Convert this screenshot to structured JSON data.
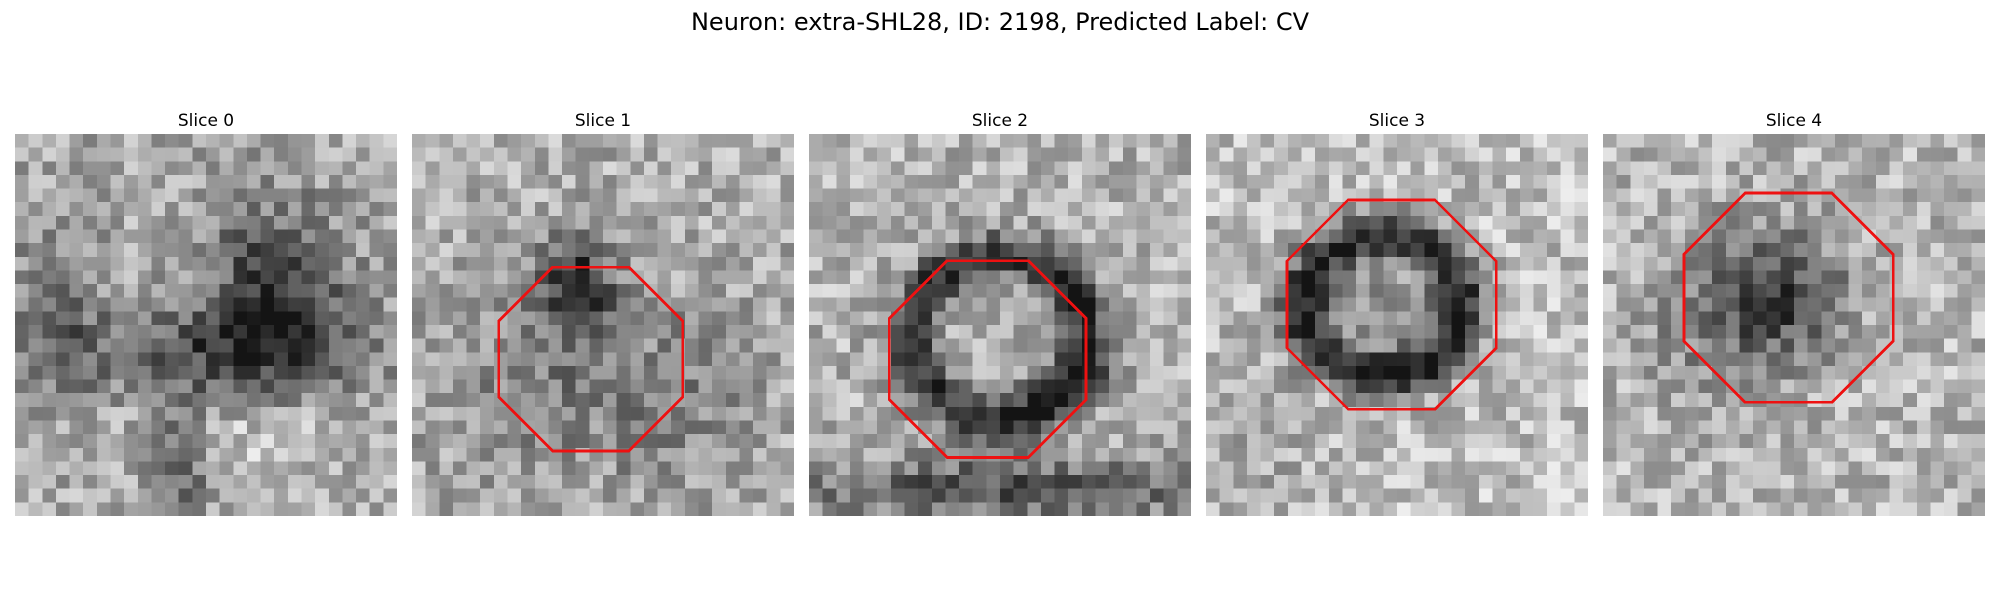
{
  "figure": {
    "title": "Neuron: extra-SHL28, ID: 2198, Predicted Label: CV"
  },
  "colors": {
    "outline": "#ee1111",
    "background": "#ffffff"
  },
  "panels": [
    {
      "title": "Slice 0",
      "outline": false
    },
    {
      "title": "Slice 1",
      "outline": true
    },
    {
      "title": "Slice 2",
      "outline": true
    },
    {
      "title": "Slice 3",
      "outline": true
    },
    {
      "title": "Slice 4",
      "outline": true
    }
  ]
}
